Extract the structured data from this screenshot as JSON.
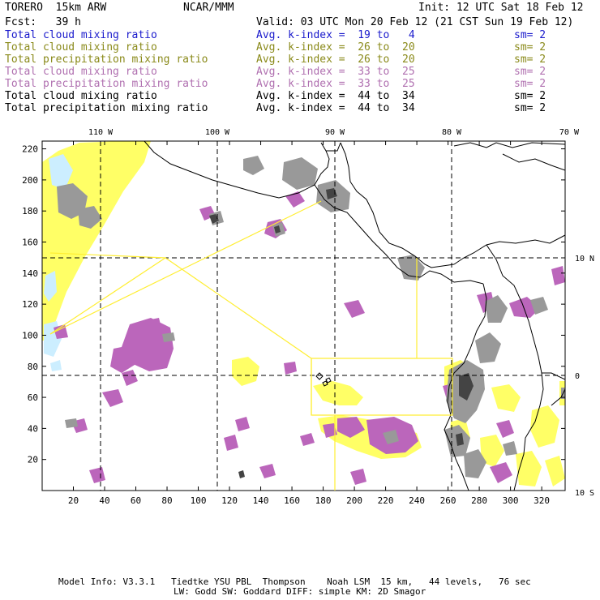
{
  "header": {
    "model": "TORERO  15km ARW",
    "org": "NCAR/MMM",
    "init": "Init: 12 UTC Sat 18 Feb 12",
    "fcst": "Fcst:   39 h",
    "valid": "Valid: 03 UTC Mon 20 Feb 12 (21 CST Sun 19 Feb 12)"
  },
  "legend": [
    {
      "name": "Total cloud mixing ratio",
      "kidx": "Avg. k-index =  19 to   4",
      "sm": "sm= 2",
      "color": "#1a1acc"
    },
    {
      "name": "Total cloud mixing ratio",
      "kidx": "Avg. k-index =  26 to  20",
      "sm": "sm= 2",
      "color": "#8a8a1a"
    },
    {
      "name": "Total precipitation mixing ratio",
      "kidx": "Avg. k-index =  26 to  20",
      "sm": "sm= 2",
      "color": "#8a8a1a"
    },
    {
      "name": "Total cloud mixing ratio",
      "kidx": "Avg. k-index =  33 to  25",
      "sm": "sm= 2",
      "color": "#b070b0"
    },
    {
      "name": "Total precipitation mixing ratio",
      "kidx": "Avg. k-index =  33 to  25",
      "sm": "sm= 2",
      "color": "#b070b0"
    },
    {
      "name": "Total cloud mixing ratio",
      "kidx": "Avg. k-index =  44 to  34",
      "sm": "sm= 2",
      "color": "#000000"
    },
    {
      "name": "Total precipitation mixing ratio",
      "kidx": "Avg. k-index =  44 to  34",
      "sm": "sm= 2",
      "color": "#000000"
    }
  ],
  "map": {
    "lon_labels": [
      "110 W",
      "100 W",
      "90 W",
      "80 W",
      "70 W"
    ],
    "lat_labels": [
      "10 N",
      "0",
      "10 S"
    ],
    "x_ticks": [
      "20",
      "40",
      "60",
      "80",
      "100",
      "120",
      "140",
      "160",
      "180",
      "200",
      "220",
      "240",
      "260",
      "280",
      "300",
      "320"
    ],
    "y_ticks": [
      "20",
      "40",
      "60",
      "80",
      "100",
      "120",
      "140",
      "160",
      "180",
      "200",
      "220"
    ],
    "grid_range_x": [
      0,
      335
    ],
    "grid_range_y": [
      0,
      225
    ],
    "colors": {
      "yellow": "#ffff66",
      "light_blue": "#cceeff",
      "purple": "#bb66bb",
      "gray": "#999999",
      "dark": "#333333",
      "box": "#ffee33"
    }
  },
  "footer": {
    "line1": "Model Info: V3.3.1   Tiedtke YSU PBL  Thompson    Noah LSM  15 km,   44 levels,   76 sec",
    "line2": "LW: Godd SW: Goddard DIFF: simple KM: 2D Smagor"
  }
}
